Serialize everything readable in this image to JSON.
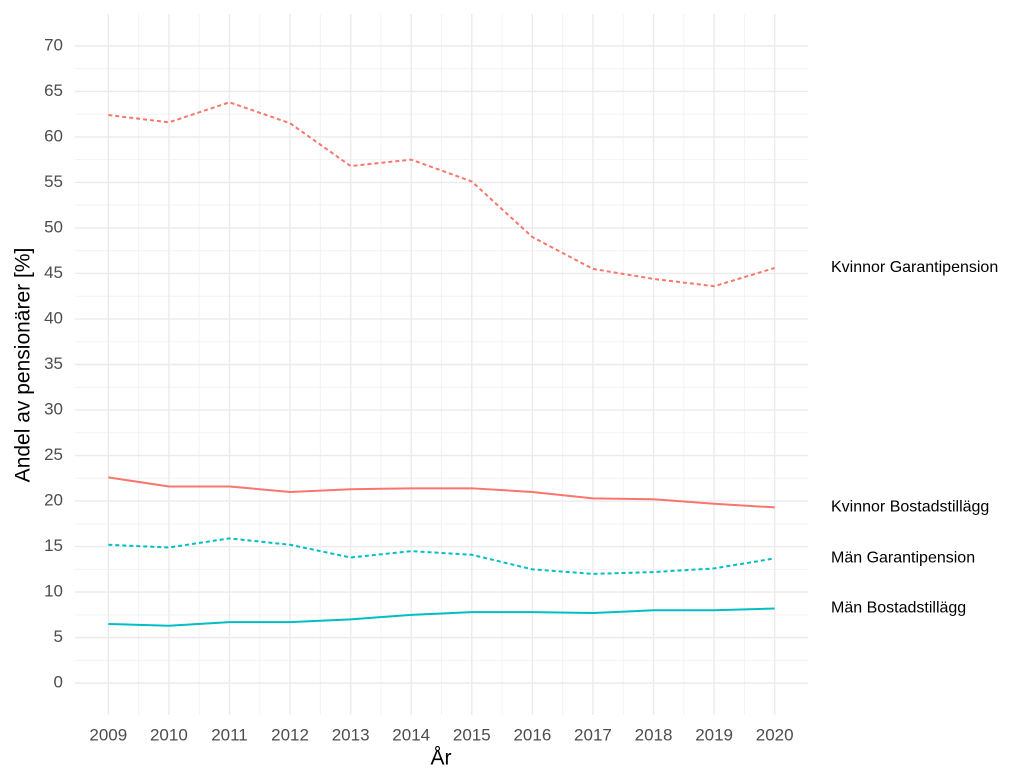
{
  "chart_data": {
    "type": "line",
    "x_label": "År",
    "y_label": "Andel av pensionärer [%]",
    "x": [
      2009,
      2010,
      2011,
      2012,
      2013,
      2014,
      2015,
      2016,
      2017,
      2018,
      2019,
      2020
    ],
    "xlim": [
      2008.45,
      2020.55
    ],
    "xticks": [
      2009,
      2010,
      2011,
      2012,
      2013,
      2014,
      2015,
      2016,
      2017,
      2018,
      2019,
      2020
    ],
    "ylim": [
      -3.5,
      73.5
    ],
    "yticks": [
      0,
      5,
      10,
      15,
      20,
      25,
      30,
      35,
      40,
      45,
      50,
      55,
      60,
      65,
      70
    ],
    "grid": true,
    "series": [
      {
        "name": "Kvinnor Garantipension",
        "color": "#F8766D",
        "linetype": "dashed",
        "values": [
          62.4,
          61.6,
          63.8,
          61.5,
          56.8,
          57.5,
          55.1,
          49.0,
          45.5,
          44.4,
          43.6,
          45.6
        ]
      },
      {
        "name": "Kvinnor Bostadstillägg",
        "color": "#F8766D",
        "linetype": "solid",
        "values": [
          22.6,
          21.6,
          21.6,
          21.0,
          21.3,
          21.4,
          21.4,
          21.0,
          20.3,
          20.2,
          19.7,
          19.3
        ]
      },
      {
        "name": "Män Garantipension",
        "color": "#00BFC4",
        "linetype": "dashed",
        "values": [
          15.2,
          14.9,
          15.9,
          15.2,
          13.8,
          14.5,
          14.1,
          12.5,
          12.0,
          12.2,
          12.6,
          13.7
        ]
      },
      {
        "name": "Män Bostadstillägg",
        "color": "#00BFC4",
        "linetype": "solid",
        "values": [
          6.5,
          6.3,
          6.7,
          6.7,
          7.0,
          7.5,
          7.8,
          7.8,
          7.7,
          8.0,
          8.0,
          8.2
        ]
      }
    ]
  }
}
